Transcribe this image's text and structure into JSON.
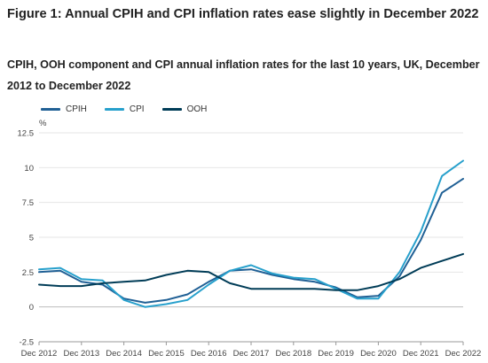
{
  "title": "Figure 1: Annual CPIH and CPI inflation rates ease slightly in December 2022",
  "subtitle": "CPIH, OOH component and CPI annual inflation rates for the last 10 years, UK, December 2012 to December 2022",
  "chart_data": {
    "type": "line",
    "title": "Figure 1: Annual CPIH and CPI inflation rates ease slightly in December 2022",
    "subtitle": "CPIH, OOH component and CPI annual inflation rates for the last 10 years, UK, December 2012 to December 2022",
    "ylabel": "%",
    "xlabel": "",
    "ylim": [
      -2.5,
      12.5
    ],
    "yticks": [
      -2.5,
      0,
      2.5,
      5,
      7.5,
      10,
      12.5
    ],
    "ytick_labels": [
      "-2.5",
      "0",
      "2.5",
      "5",
      "7.5",
      "10",
      "12.5"
    ],
    "xticks": [
      "Dec 2012",
      "Dec 2013",
      "Dec 2014",
      "Dec 2015",
      "Dec 2016",
      "Dec 2017",
      "Dec 2018",
      "Dec 2019",
      "Dec 2020",
      "Dec 2021",
      "Dec 2022"
    ],
    "grid": true,
    "legend_position": "top-left",
    "x": [
      "Dec 2012",
      "Jun 2013",
      "Dec 2013",
      "Jun 2014",
      "Dec 2014",
      "Jun 2015",
      "Dec 2015",
      "Jun 2016",
      "Dec 2016",
      "Jun 2017",
      "Dec 2017",
      "Jun 2018",
      "Dec 2018",
      "Jun 2019",
      "Dec 2019",
      "Jun 2020",
      "Dec 2020",
      "Jun 2021",
      "Dec 2021",
      "Jun 2022",
      "Dec 2022"
    ],
    "series": [
      {
        "name": "CPIH",
        "color": "#206095",
        "values": [
          2.5,
          2.6,
          1.8,
          1.6,
          0.6,
          0.3,
          0.5,
          0.9,
          1.8,
          2.6,
          2.7,
          2.3,
          2.0,
          1.8,
          1.4,
          0.7,
          0.8,
          2.2,
          4.8,
          8.2,
          9.2
        ]
      },
      {
        "name": "CPI",
        "color": "#27a0cc",
        "values": [
          2.7,
          2.8,
          2.0,
          1.9,
          0.5,
          0.0,
          0.2,
          0.5,
          1.6,
          2.6,
          3.0,
          2.4,
          2.1,
          2.0,
          1.3,
          0.6,
          0.6,
          2.5,
          5.4,
          9.4,
          10.5
        ]
      },
      {
        "name": "OOH",
        "color": "#003c57",
        "values": [
          1.6,
          1.5,
          1.5,
          1.7,
          1.8,
          1.9,
          2.3,
          2.6,
          2.5,
          1.7,
          1.3,
          1.3,
          1.3,
          1.3,
          1.2,
          1.2,
          1.5,
          2.0,
          2.8,
          3.3,
          3.8
        ]
      }
    ]
  }
}
